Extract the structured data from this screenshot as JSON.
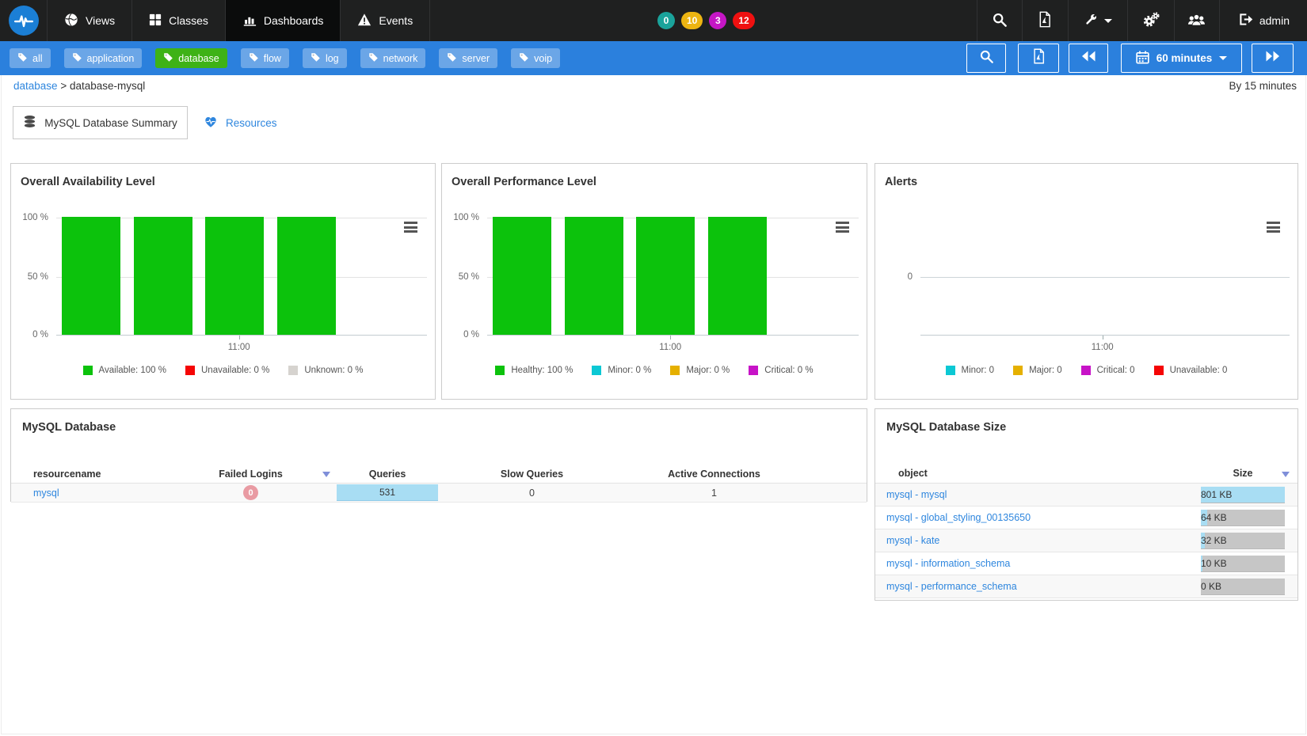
{
  "navbar": {
    "nav_items": [
      {
        "label": "Views",
        "icon": "globe-icon",
        "active": false
      },
      {
        "label": "Classes",
        "icon": "grid-icon",
        "active": false
      },
      {
        "label": "Dashboards",
        "icon": "bar-chart-icon",
        "active": true
      },
      {
        "label": "Events",
        "icon": "warning-triangle-icon",
        "active": false
      }
    ],
    "event_badges": [
      {
        "value": "0",
        "color": "#1aa39b"
      },
      {
        "value": "10",
        "color": "#edb512"
      },
      {
        "value": "3",
        "color": "#c516c5"
      },
      {
        "value": "12",
        "color": "#ef1010"
      }
    ],
    "username": "admin"
  },
  "tagbar": {
    "tags": [
      {
        "label": "all",
        "active": false
      },
      {
        "label": "application",
        "active": false
      },
      {
        "label": "database",
        "active": true
      },
      {
        "label": "flow",
        "active": false
      },
      {
        "label": "log",
        "active": false
      },
      {
        "label": "network",
        "active": false
      },
      {
        "label": "server",
        "active": false
      },
      {
        "label": "voip",
        "active": false
      }
    ],
    "time_range_label": "60 minutes"
  },
  "breadcrumb": {
    "parent": "database",
    "separator": ">",
    "current": "database-mysql",
    "aggregation_note": "By 15 minutes"
  },
  "tabs": [
    {
      "label": "MySQL Database Summary",
      "active": true
    },
    {
      "label": "Resources",
      "active": false
    }
  ],
  "colors": {
    "accent_blue": "#2b80dd",
    "link_blue": "#2e86de",
    "tag_active_green": "#3eb216",
    "table_bar_blue": "#a8ddf3",
    "table_bar_gray": "#c6c6c6",
    "failed_logins_badge": "#e99ba3",
    "sort_arrow": "#7f8fd9"
  },
  "chart_data": [
    {
      "type": "bar",
      "title": "Overall Availability Level",
      "x_tick_labels": [
        "11:00"
      ],
      "y_tick_labels": [
        "0 %",
        "50 %",
        "100 %"
      ],
      "ylim": [
        0,
        100
      ],
      "values": [
        100,
        100,
        100,
        100
      ],
      "bar_color": "#0cc20c",
      "grid": true,
      "legend_position": "bottom",
      "legend": [
        {
          "label": "Available: 100 %",
          "color": "#0cc20c"
        },
        {
          "label": "Unavailable: 0 %",
          "color": "#f50505"
        },
        {
          "label": "Unknown: 0 %",
          "color": "#d6d3cf"
        }
      ]
    },
    {
      "type": "bar",
      "title": "Overall Performance Level",
      "x_tick_labels": [
        "11:00"
      ],
      "y_tick_labels": [
        "0 %",
        "50 %",
        "100 %"
      ],
      "ylim": [
        0,
        100
      ],
      "values": [
        100,
        100,
        100,
        100
      ],
      "bar_color": "#0cc20c",
      "grid": true,
      "legend_position": "bottom",
      "legend": [
        {
          "label": "Healthy: 100 %",
          "color": "#0cc20c"
        },
        {
          "label": "Minor: 0 %",
          "color": "#0cc8d4"
        },
        {
          "label": "Major: 0 %",
          "color": "#e5b000"
        },
        {
          "label": "Critical: 0 %",
          "color": "#c713c7"
        }
      ]
    },
    {
      "type": "line",
      "title": "Alerts",
      "x_tick_labels": [
        "11:00"
      ],
      "y_tick_labels": [
        "0"
      ],
      "values": [
        0,
        0,
        0,
        0
      ],
      "legend_position": "bottom",
      "legend": [
        {
          "label": "Minor: 0",
          "color": "#0cc8d4"
        },
        {
          "label": "Major: 0",
          "color": "#e5b000"
        },
        {
          "label": "Critical: 0",
          "color": "#c713c7"
        },
        {
          "label": "Unavailable: 0",
          "color": "#f50505"
        }
      ]
    }
  ],
  "mysql_table": {
    "title": "MySQL Database",
    "columns": [
      "resourcename",
      "Failed Logins",
      "Queries",
      "Slow Queries",
      "Active Connections"
    ],
    "sorted_column": "Failed Logins",
    "sort_direction": "desc",
    "rows": [
      {
        "resourcename": "mysql",
        "failed_logins": "0",
        "queries": "531",
        "queries_bar_percent": 100,
        "slow_queries": "0",
        "active_connections": "1"
      }
    ]
  },
  "size_table": {
    "title": "MySQL Database Size",
    "columns": [
      "object",
      "Size"
    ],
    "sorted_column": "Size",
    "sort_direction": "desc",
    "rows": [
      {
        "object": "mysql - mysql",
        "size": "801 KB",
        "bar_percent": 100
      },
      {
        "object": "mysql - global_styling_00135650",
        "size": "64 KB",
        "bar_percent": 8
      },
      {
        "object": "mysql - kate",
        "size": "32 KB",
        "bar_percent": 5
      },
      {
        "object": "mysql - information_schema",
        "size": "10 KB",
        "bar_percent": 2
      },
      {
        "object": "mysql - performance_schema",
        "size": "0 KB",
        "bar_percent": 0
      }
    ]
  }
}
